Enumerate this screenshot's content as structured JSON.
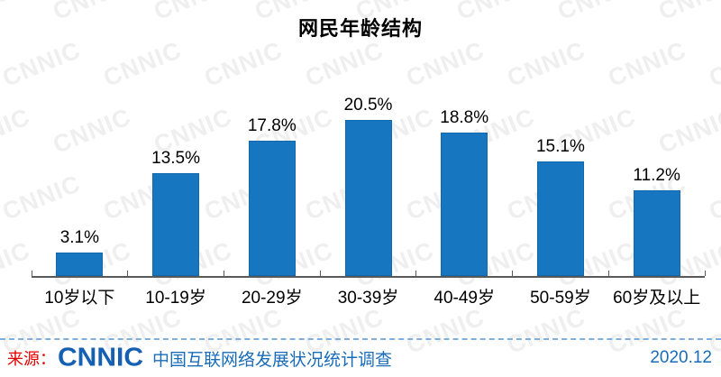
{
  "title": "网民年龄结构",
  "watermark": {
    "text": "CNNIC",
    "color": "#efefef"
  },
  "chart_data": {
    "type": "bar",
    "title": "网民年龄结构",
    "categories": [
      "10岁以下",
      "10-19岁",
      "20-29岁",
      "30-39岁",
      "40-49岁",
      "50-59岁",
      "60岁及以上"
    ],
    "values": [
      3.1,
      13.5,
      17.8,
      20.5,
      18.8,
      15.1,
      11.2
    ],
    "value_labels": [
      "3.1%",
      "13.5%",
      "17.8%",
      "20.5%",
      "18.8%",
      "15.1%",
      "11.2%"
    ],
    "unit": "%",
    "xlabel": "",
    "ylabel": "",
    "ylim": [
      0,
      24
    ],
    "grid": false,
    "legend": false,
    "bar_color": "#1677c0",
    "axis_color": "#595959",
    "label_color": "#000000"
  },
  "footer": {
    "source_label": "来源：",
    "logo_text": "CNNIC",
    "source_name": "中国互联网络发展状况统计调查",
    "date": "2020.12",
    "accent_blue": "#1a6cb8",
    "accent_red": "#e60000"
  }
}
